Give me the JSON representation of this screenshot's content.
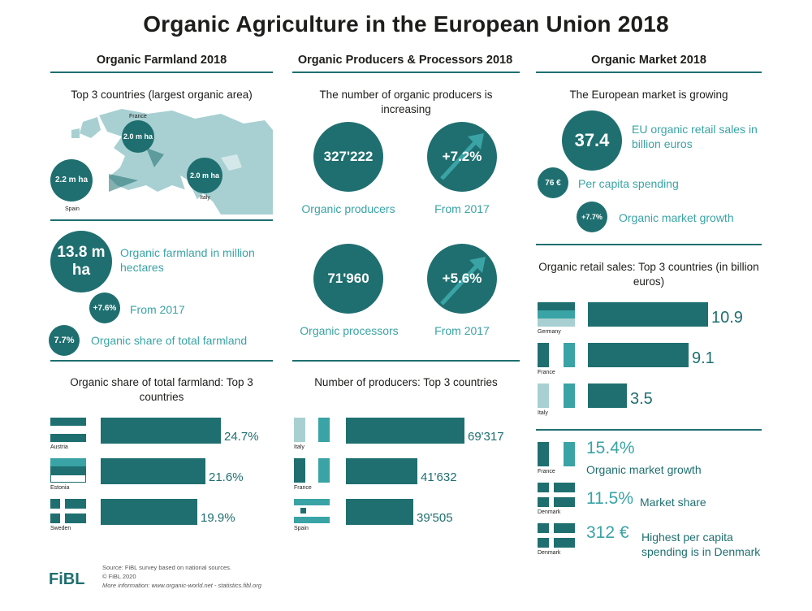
{
  "title": "Organic Agriculture in the European Union 2018",
  "col1": {
    "heading": "Organic Farmland 2018",
    "map_title": "Top 3 countries (largest organic area)",
    "map_markers": [
      {
        "value": "2.0 m ha",
        "country": "France"
      },
      {
        "value": "2.2 m ha",
        "country": "Spain"
      },
      {
        "value": "2.0 m ha",
        "country": "Italy"
      }
    ],
    "farmland_value": "13.8 m ha",
    "farmland_label": "Organic farmland in million hectares",
    "growth_value": "+7.6%",
    "growth_label": "From 2017",
    "share_value": "7.7%",
    "share_label": "Organic share of total farmland",
    "top3_title": "Organic share of total farmland: Top 3 countries",
    "top3": [
      {
        "country": "Austria",
        "value": 24.7,
        "label": "24.7%"
      },
      {
        "country": "Estonia",
        "value": 21.6,
        "label": "21.6%"
      },
      {
        "country": "Sweden",
        "value": 19.9,
        "label": "19.9%"
      }
    ]
  },
  "col2": {
    "heading": "Organic Producers & Processors 2018",
    "intro": "The number of organic producers is increasing",
    "producers_value": "327'222",
    "producers_label": "Organic producers",
    "producers_growth": "+7.2%",
    "producers_growth_label": "From 2017",
    "processors_value": "71'960",
    "processors_label": "Organic processors",
    "processors_growth": "+5.6%",
    "processors_growth_label": "From 2017",
    "top3_title": "Number of producers: Top 3 countries",
    "top3": [
      {
        "country": "Italy",
        "value": 69317,
        "label": "69'317"
      },
      {
        "country": "France",
        "value": 41632,
        "label": "41'632"
      },
      {
        "country": "Spain",
        "value": 39505,
        "label": "39'505"
      }
    ]
  },
  "col3": {
    "heading": "Organic Market 2018",
    "intro": "The European market is growing",
    "sales_value": "37.4",
    "sales_label": "EU organic retail sales in billion euros",
    "capita_value": "76 €",
    "capita_label": "Per capita spending",
    "growth_value": "+7.7%",
    "growth_label": "Organic market growth",
    "top3_title": "Organic retail sales: Top 3 countries (in billion euros)",
    "top3": [
      {
        "country": "Germany",
        "value": 10.9,
        "label": "10.9"
      },
      {
        "country": "France",
        "value": 9.1,
        "label": "9.1"
      },
      {
        "country": "Italy",
        "value": 3.5,
        "label": "3.5"
      }
    ],
    "facts": [
      {
        "country": "France",
        "big": "15.4%",
        "text": "Organic market growth"
      },
      {
        "country": "Denmark",
        "big": "11.5%",
        "text": "Market share"
      },
      {
        "country": "Denmark",
        "big": "312 €",
        "text": "Highest per capita spending is in Denmark"
      }
    ]
  },
  "footer": {
    "source": "Source: FiBL survey based on national sources.",
    "copyright": "© FiBL 2020",
    "more": "More information: www.organic-world.net - statistics.fibl.org",
    "logo": "FiBL"
  },
  "colors": {
    "teal": "#1f6f70",
    "light_teal": "#3aa3a5",
    "map": "#a8d0d2"
  }
}
